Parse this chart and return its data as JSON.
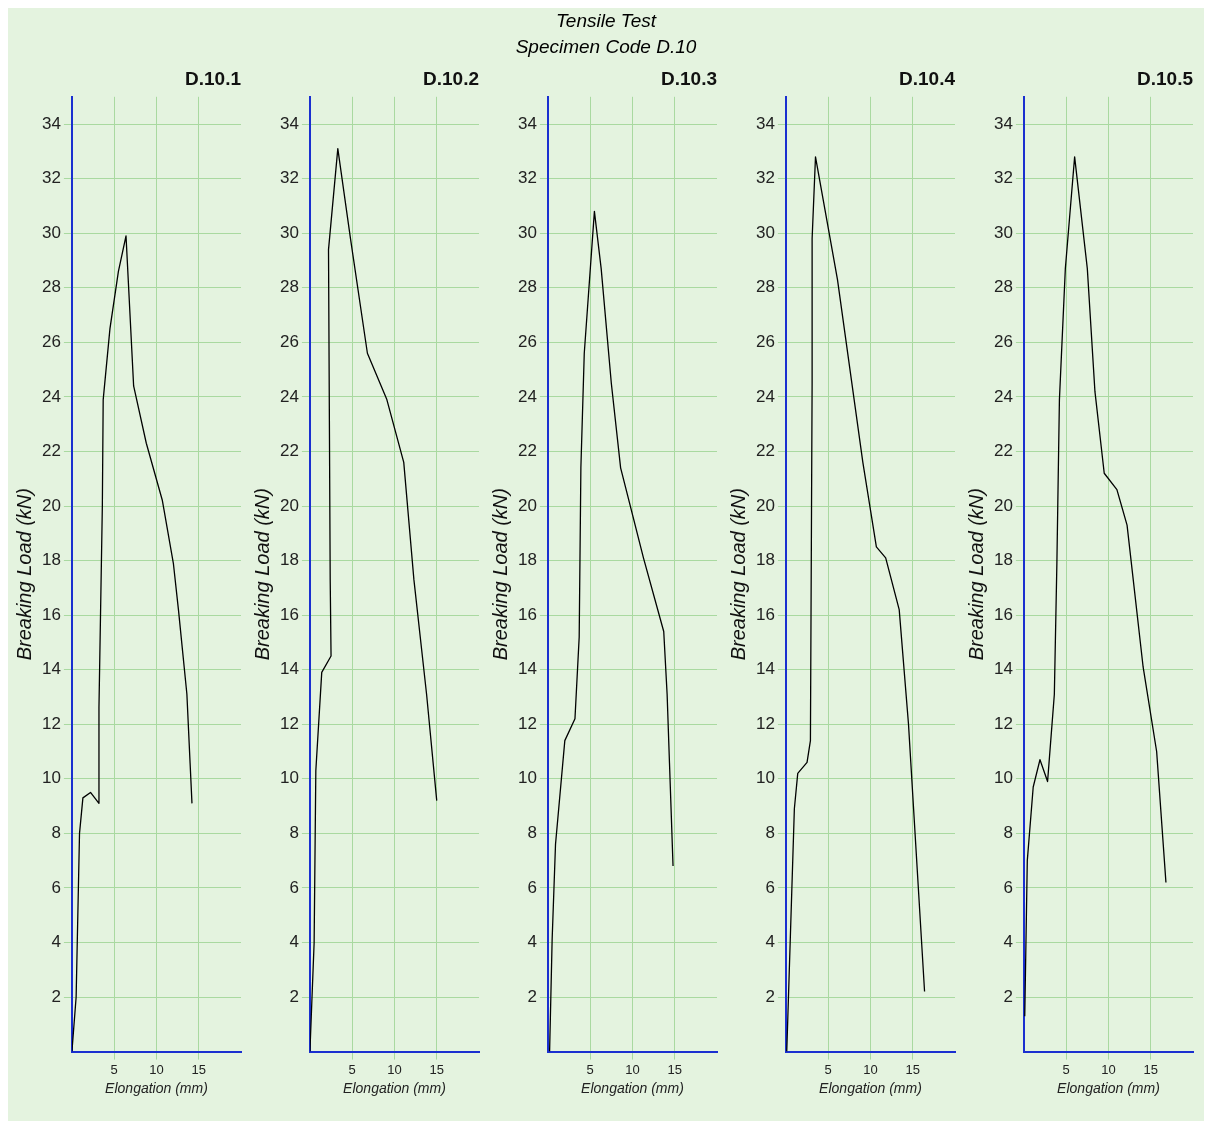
{
  "chart_data": [
    {
      "type": "other",
      "title": "Tensile Test",
      "subtitle": "Specimen Code D.10"
    },
    {
      "type": "line",
      "title": "D.10.1",
      "xlabel": "Elongation (mm)",
      "ylabel": "Breaking Load (kN)",
      "color": "#000000",
      "grid": true,
      "xlim": [
        0,
        20
      ],
      "ylim": [
        0,
        35
      ],
      "xticks": [
        5,
        10,
        15
      ],
      "yticks": [
        2,
        4,
        6,
        8,
        10,
        12,
        14,
        16,
        18,
        20,
        22,
        24,
        26,
        28,
        30,
        32,
        34
      ],
      "x": [
        0,
        0.5,
        0.9,
        1.3,
        2.2,
        3.2,
        3.2,
        3.6,
        3.7,
        4.5,
        5.5,
        6.4,
        7.3,
        8.8,
        10.7,
        12.0,
        12.6,
        13.6,
        14.2
      ],
      "values": [
        0,
        2,
        8,
        9.3,
        9.5,
        9.1,
        12.6,
        20,
        23.9,
        26.5,
        28.6,
        29.9,
        24.4,
        22.3,
        20.2,
        17.9,
        16.2,
        13.1,
        9.1
      ]
    },
    {
      "type": "line",
      "title": "D.10.2",
      "xlabel": "Elongation (mm)",
      "ylabel": "Breaking Load (kN)",
      "color": "#000000",
      "grid": true,
      "xlim": [
        0,
        20
      ],
      "ylim": [
        0,
        35
      ],
      "xticks": [
        5,
        10,
        15
      ],
      "yticks": [
        2,
        4,
        6,
        8,
        10,
        12,
        14,
        16,
        18,
        20,
        22,
        24,
        26,
        28,
        30,
        32,
        34
      ],
      "x": [
        0,
        0.5,
        0.7,
        1.4,
        2.5,
        2.4,
        2.2,
        3.3,
        4.8,
        6.8,
        9.1,
        11.1,
        12.3,
        13.8,
        15
      ],
      "values": [
        0,
        4,
        10.3,
        13.9,
        14.5,
        17.3,
        29.4,
        33.1,
        29.8,
        25.6,
        23.9,
        21.6,
        17.3,
        13.1,
        9.2
      ]
    },
    {
      "type": "line",
      "title": "D.10.3",
      "xlabel": "Elongation (mm)",
      "ylabel": "Breaking Load (kN)",
      "color": "#000000",
      "grid": true,
      "xlim": [
        0,
        20
      ],
      "ylim": [
        0,
        35
      ],
      "xticks": [
        5,
        10,
        15
      ],
      "yticks": [
        2,
        4,
        6,
        8,
        10,
        12,
        14,
        16,
        18,
        20,
        22,
        24,
        26,
        28,
        30,
        32,
        34
      ],
      "x": [
        0.2,
        0.5,
        0.9,
        2.0,
        3.2,
        3.7,
        3.9,
        4.3,
        5.5,
        6.3,
        7.5,
        8.6,
        11.3,
        13.7,
        14.1,
        14.8
      ],
      "values": [
        0,
        4.1,
        7.6,
        11.4,
        12.2,
        15.2,
        21.4,
        25.6,
        30.8,
        28.7,
        24.5,
        21.4,
        18.1,
        15.4,
        13.1,
        6.8
      ]
    },
    {
      "type": "line",
      "title": "D.10.4",
      "xlabel": "Elongation (mm)",
      "ylabel": "Breaking Load (kN)",
      "color": "#000000",
      "grid": true,
      "xlim": [
        0,
        20
      ],
      "ylim": [
        0,
        35
      ],
      "xticks": [
        5,
        10,
        15
      ],
      "yticks": [
        2,
        4,
        6,
        8,
        10,
        12,
        14,
        16,
        18,
        20,
        22,
        24,
        26,
        28,
        30,
        32,
        34
      ],
      "x": [
        0.1,
        1.0,
        1.4,
        2.5,
        2.9,
        3.1,
        3.1,
        3.5,
        6.1,
        9.1,
        10.7,
        11.8,
        13.4,
        14.5,
        16.4
      ],
      "values": [
        0,
        8.9,
        10.2,
        10.6,
        11.4,
        24.5,
        29.8,
        32.8,
        28.3,
        21.6,
        18.5,
        18.1,
        16.2,
        12.0,
        2.2
      ]
    },
    {
      "type": "line",
      "title": "D.10.5",
      "xlabel": "Elongation (mm)",
      "ylabel": "Breaking Load (kN)",
      "color": "#000000",
      "grid": true,
      "xlim": [
        0,
        20
      ],
      "ylim": [
        0,
        35
      ],
      "xticks": [
        5,
        10,
        15
      ],
      "yticks": [
        2,
        4,
        6,
        8,
        10,
        12,
        14,
        16,
        18,
        20,
        22,
        24,
        26,
        28,
        30,
        32,
        34
      ],
      "x": [
        0.1,
        0.4,
        1.1,
        1.9,
        2.8,
        3.6,
        3.9,
        4.2,
        4.9,
        6.0,
        7.5,
        8.4,
        9.5,
        11.0,
        12.2,
        14.1,
        15.7,
        16.8
      ],
      "values": [
        1.3,
        7.0,
        9.7,
        10.7,
        9.9,
        13.1,
        17.9,
        23.9,
        28.7,
        32.8,
        28.7,
        24.2,
        21.2,
        20.6,
        19.3,
        14.1,
        11.0,
        6.2
      ]
    }
  ]
}
